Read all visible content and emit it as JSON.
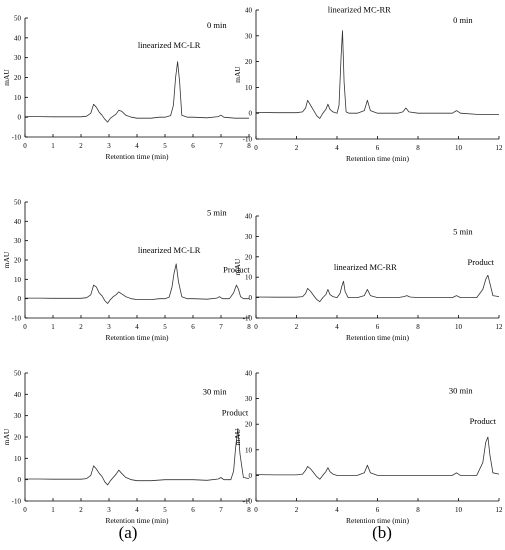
{
  "figure": {
    "captions": [
      "(a)",
      "(b)"
    ]
  },
  "chart_data": [
    {
      "id": "a0",
      "type": "line",
      "annotations": [
        "0 min",
        "linearized MC-LR"
      ],
      "xlabel": "Retention time (min)",
      "ylabel": "mAU",
      "xlim": [
        0,
        8
      ],
      "ylim": [
        -10,
        50
      ],
      "xticks": [
        "0",
        "1",
        "2",
        "3",
        "4",
        "5",
        "6",
        "7",
        "8"
      ],
      "yticks": [
        "-10",
        "0",
        "10",
        "20",
        "30",
        "40",
        "50"
      ],
      "series": [
        {
          "x": [
            0,
            0.5,
            1,
            1.5,
            2,
            2.2,
            2.35,
            2.45,
            2.55,
            2.65,
            2.75,
            2.85,
            2.95,
            3.05,
            3.15,
            3.25,
            3.35,
            3.45,
            3.6,
            3.8,
            4,
            4.5,
            4.8,
            5,
            5.2,
            5.3,
            5.38,
            5.45,
            5.52,
            5.6,
            5.8,
            6,
            6.5,
            6.9,
            7,
            7.1,
            7.5,
            8
          ],
          "y": [
            0.3,
            0.3,
            0.2,
            0.2,
            0.2,
            0.5,
            2,
            6.5,
            5,
            2.5,
            1,
            -1,
            -2.5,
            -0.5,
            0.5,
            1.5,
            3.5,
            3,
            1,
            0,
            -0.5,
            -0.5,
            0,
            0,
            0.8,
            6,
            20,
            28,
            18,
            1,
            0,
            0,
            -0.3,
            0.3,
            1,
            0,
            -0.5,
            -0.5
          ]
        }
      ]
    },
    {
      "id": "a5",
      "type": "line",
      "annotations": [
        "5 min",
        "linearized MC-LR",
        "Product"
      ],
      "xlabel": "Retention time (min)",
      "ylabel": "mAU",
      "xlim": [
        0,
        8
      ],
      "ylim": [
        -10,
        50
      ],
      "xticks": [
        "0",
        "1",
        "2",
        "3",
        "4",
        "5",
        "6",
        "7",
        "8"
      ],
      "yticks": [
        "-10",
        "0",
        "10",
        "20",
        "30",
        "40",
        "50"
      ],
      "series": [
        {
          "x": [
            0,
            0.5,
            1,
            1.5,
            2,
            2.2,
            2.35,
            2.45,
            2.55,
            2.65,
            2.75,
            2.85,
            2.95,
            3.05,
            3.15,
            3.25,
            3.35,
            3.45,
            3.6,
            3.8,
            4,
            4.5,
            4.8,
            5,
            5.15,
            5.25,
            5.32,
            5.4,
            5.48,
            5.6,
            5.8,
            6,
            6.5,
            6.85,
            6.95,
            7.05,
            7.3,
            7.45,
            7.55,
            7.62,
            7.7,
            7.8,
            8
          ],
          "y": [
            0.3,
            0.3,
            0.2,
            0.2,
            0.2,
            0.5,
            2,
            7,
            6,
            3,
            1.5,
            -1,
            -2.5,
            -0.5,
            1,
            2,
            3.5,
            2.5,
            1,
            0,
            -0.5,
            -0.5,
            0,
            0,
            0.8,
            6,
            13,
            18,
            9,
            1,
            0,
            0,
            -0.3,
            0.3,
            1,
            0,
            0,
            3,
            7,
            5,
            1,
            0,
            0
          ]
        }
      ]
    },
    {
      "id": "a30",
      "type": "line",
      "annotations": [
        "30 min",
        "Product"
      ],
      "xlabel": "Retention time (min)",
      "ylabel": "mAU",
      "xlim": [
        0,
        8
      ],
      "ylim": [
        -10,
        50
      ],
      "xticks": [
        "0",
        "1",
        "2",
        "3",
        "4",
        "5",
        "6",
        "7",
        "8"
      ],
      "yticks": [
        "-10",
        "0",
        "10",
        "20",
        "30",
        "40",
        "50"
      ],
      "series": [
        {
          "x": [
            0,
            0.5,
            1,
            1.5,
            2,
            2.2,
            2.35,
            2.45,
            2.55,
            2.65,
            2.75,
            2.85,
            2.95,
            3.05,
            3.15,
            3.25,
            3.35,
            3.45,
            3.6,
            3.8,
            4,
            4.5,
            5,
            5.5,
            6,
            6.5,
            6.9,
            7,
            7.1,
            7.35,
            7.45,
            7.52,
            7.6,
            7.68,
            7.8,
            8
          ],
          "y": [
            0.3,
            0.3,
            0.2,
            0.2,
            0.2,
            0.5,
            2,
            6.5,
            5,
            3,
            1.5,
            -1,
            -2.5,
            -0.5,
            1,
            2.5,
            4.5,
            3,
            1,
            0,
            -0.5,
            -0.5,
            0,
            0,
            0,
            -0.3,
            0.3,
            1,
            0,
            0,
            4,
            15,
            24,
            12,
            1,
            0.5
          ]
        }
      ]
    },
    {
      "id": "b0",
      "type": "line",
      "annotations": [
        "0 min",
        "linearized MC-RR"
      ],
      "xlabel": "Retention time (min)",
      "ylabel": "mAU",
      "xlim": [
        0,
        12
      ],
      "ylim": [
        -10,
        40
      ],
      "xticks": [
        "0",
        "2",
        "4",
        "6",
        "8",
        "10",
        "12"
      ],
      "yticks": [
        "-10",
        "0",
        "10",
        "20",
        "30",
        "40"
      ],
      "series": [
        {
          "x": [
            0,
            1,
            2,
            2.3,
            2.45,
            2.55,
            2.7,
            2.85,
            3,
            3.15,
            3.3,
            3.45,
            3.55,
            3.65,
            3.8,
            4,
            4.1,
            4.2,
            4.27,
            4.35,
            4.45,
            4.6,
            5,
            5.35,
            5.5,
            5.65,
            6,
            7,
            7.25,
            7.4,
            7.55,
            8,
            9,
            9.7,
            9.9,
            10.1,
            11,
            12
          ],
          "y": [
            0.3,
            0.2,
            0.2,
            0.5,
            2,
            5,
            3,
            1,
            -1,
            -2,
            0,
            1.5,
            3.5,
            1.5,
            0.5,
            0,
            3,
            22,
            32,
            12,
            0.5,
            0,
            0,
            1,
            5,
            1,
            0,
            0,
            0.5,
            2,
            0.5,
            0,
            0,
            0,
            1,
            0,
            -0.5,
            -0.5
          ]
        }
      ]
    },
    {
      "id": "b5",
      "type": "line",
      "annotations": [
        "5 min",
        "linearized MC-RR",
        "Product"
      ],
      "xlabel": "Retention time (min)",
      "ylabel": "mAU",
      "xlim": [
        0,
        12
      ],
      "ylim": [
        -10,
        40
      ],
      "xticks": [
        "0",
        "2",
        "4",
        "6",
        "8",
        "10",
        "12"
      ],
      "yticks": [
        "-10",
        "0",
        "10",
        "20",
        "30",
        "40"
      ],
      "series": [
        {
          "x": [
            0,
            1,
            2,
            2.3,
            2.45,
            2.55,
            2.7,
            2.85,
            3,
            3.15,
            3.3,
            3.45,
            3.55,
            3.65,
            3.8,
            4,
            4.15,
            4.25,
            4.32,
            4.4,
            4.55,
            5,
            5.35,
            5.5,
            5.65,
            6,
            7,
            7.3,
            7.45,
            7.6,
            8,
            9,
            9.7,
            9.9,
            10.1,
            10.9,
            11.2,
            11.35,
            11.45,
            11.55,
            11.7,
            12
          ],
          "y": [
            0.3,
            0.2,
            0.2,
            0.5,
            2,
            4.5,
            3,
            1,
            -1,
            -2,
            0,
            1.5,
            4,
            1.5,
            0.5,
            0,
            2,
            6,
            8,
            3,
            0,
            0,
            1,
            4,
            1,
            0,
            0,
            0.5,
            1,
            0.3,
            0,
            0,
            0,
            1,
            0,
            0,
            4,
            9,
            11,
            7,
            1,
            0.5
          ]
        }
      ]
    },
    {
      "id": "b30",
      "type": "line",
      "annotations": [
        "30 min",
        "Product"
      ],
      "xlabel": "Retention time (min)",
      "ylabel": "mAU",
      "xlim": [
        0,
        12
      ],
      "ylim": [
        -10,
        40
      ],
      "xticks": [
        "0",
        "2",
        "4",
        "6",
        "8",
        "10",
        "12"
      ],
      "yticks": [
        "-10",
        "0",
        "10",
        "20",
        "30",
        "40"
      ],
      "series": [
        {
          "x": [
            0,
            1,
            2,
            2.3,
            2.45,
            2.55,
            2.7,
            2.85,
            3,
            3.15,
            3.3,
            3.45,
            3.55,
            3.65,
            3.8,
            4,
            4.5,
            5,
            5.35,
            5.5,
            5.65,
            6,
            7,
            8,
            9,
            9.7,
            9.9,
            10.1,
            10.9,
            11.2,
            11.35,
            11.45,
            11.55,
            11.7,
            12
          ],
          "y": [
            0.3,
            0.2,
            0.2,
            0.5,
            2,
            3.5,
            2.5,
            1,
            -0.5,
            -1.5,
            0,
            1.5,
            3,
            1.5,
            0.5,
            0,
            0,
            0,
            1,
            4,
            1,
            0,
            0,
            0,
            0,
            0,
            1,
            0,
            0,
            5,
            13,
            15,
            8,
            1,
            0.5
          ]
        }
      ]
    }
  ]
}
